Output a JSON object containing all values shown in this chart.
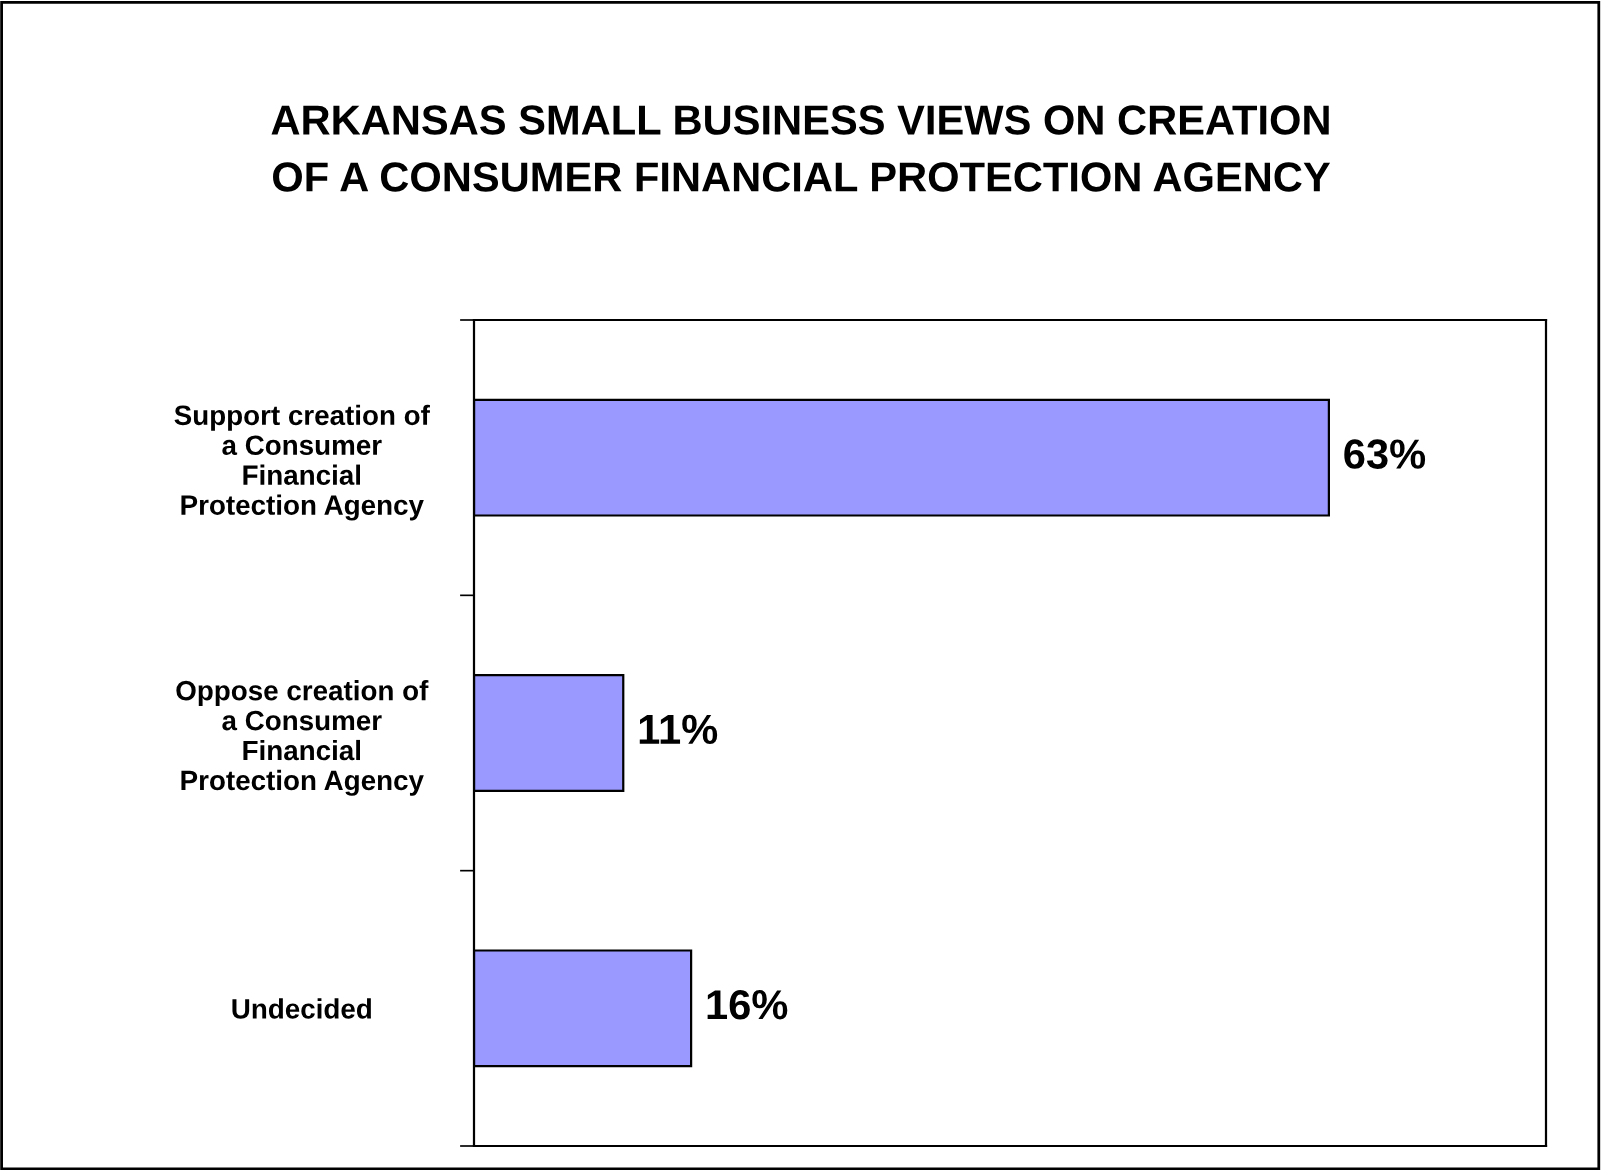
{
  "chart_data": {
    "type": "bar",
    "orientation": "horizontal",
    "title": "ARKANSAS SMALL BUSINESS VIEWS ON CREATION\nOF A CONSUMER FINANCIAL PROTECTION AGENCY",
    "categories": [
      "Support creation of\na Consumer\nFinancial\nProtection Agency",
      "Oppose creation of\na Consumer\nFinancial\nProtection Agency",
      "Undecided"
    ],
    "values": [
      63,
      11,
      16
    ],
    "value_labels": [
      "63%",
      "11%",
      "16%"
    ],
    "color": "#9999ff",
    "xlim": [
      0,
      79
    ],
    "grid": false,
    "legend": false
  }
}
